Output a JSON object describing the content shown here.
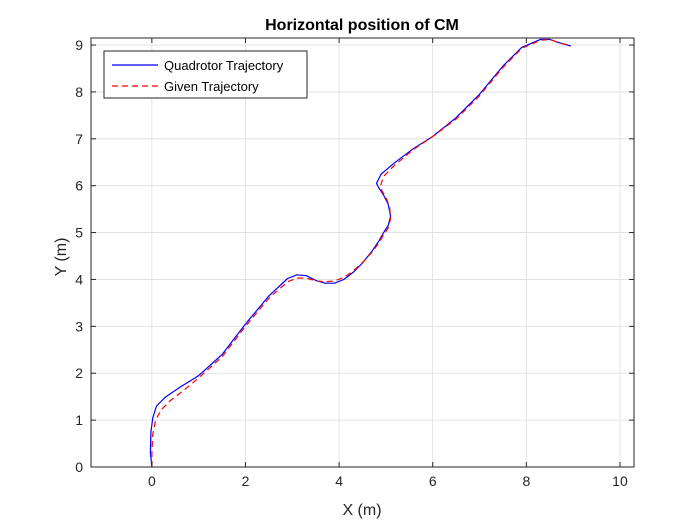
{
  "chart_data": {
    "type": "line",
    "title": "Horizontal position of CM",
    "xlabel": "X (m)",
    "ylabel": "Y (m)",
    "xlim": [
      -1.3,
      10.3
    ],
    "ylim": [
      0,
      9.15
    ],
    "xticks": [
      0,
      2,
      4,
      6,
      8,
      10
    ],
    "yticks": [
      0,
      1,
      2,
      3,
      4,
      5,
      6,
      7,
      8,
      9
    ],
    "grid": true,
    "legend_position": "top-left",
    "series": [
      {
        "name": "Quadrotor Trajectory",
        "color": "#0000ff",
        "line_style": "solid",
        "x": [
          0.0,
          -0.03,
          -0.02,
          0.02,
          0.1,
          0.3,
          0.6,
          1.0,
          1.5,
          2.0,
          2.5,
          2.9,
          3.1,
          3.3,
          3.5,
          3.7,
          3.9,
          4.1,
          4.3,
          4.5,
          4.7,
          4.85,
          4.95,
          5.05,
          5.1,
          5.05,
          4.95,
          4.85,
          4.8,
          4.9,
          5.2,
          5.6,
          6.0,
          6.5,
          7.0,
          7.5,
          7.9,
          8.3,
          8.5,
          8.7,
          8.95
        ],
        "y": [
          0.0,
          0.3,
          0.75,
          1.05,
          1.3,
          1.5,
          1.7,
          1.95,
          2.4,
          3.05,
          3.65,
          4.02,
          4.1,
          4.08,
          3.98,
          3.92,
          3.92,
          4.0,
          4.15,
          4.35,
          4.6,
          4.82,
          5.0,
          5.15,
          5.35,
          5.6,
          5.8,
          5.95,
          6.05,
          6.25,
          6.5,
          6.8,
          7.05,
          7.45,
          7.95,
          8.55,
          8.95,
          9.12,
          9.12,
          9.05,
          8.98
        ]
      },
      {
        "name": "Given Trajectory",
        "color": "#ff0000",
        "line_style": "dashed",
        "x": [
          0.0,
          0.0,
          0.02,
          0.08,
          0.2,
          0.4,
          0.7,
          1.0,
          1.5,
          2.0,
          2.5,
          2.9,
          3.1,
          3.3,
          3.5,
          3.7,
          3.9,
          4.1,
          4.3,
          4.5,
          4.7,
          4.85,
          4.95,
          5.05,
          5.1,
          5.08,
          5.0,
          4.92,
          4.88,
          4.95,
          5.2,
          5.6,
          6.0,
          6.5,
          7.0,
          7.5,
          7.9,
          8.3,
          8.5,
          8.7,
          8.95
        ],
        "y": [
          0.0,
          0.3,
          0.7,
          1.0,
          1.22,
          1.42,
          1.65,
          1.9,
          2.35,
          3.0,
          3.6,
          3.95,
          4.03,
          4.03,
          3.97,
          3.95,
          3.97,
          4.04,
          4.18,
          4.36,
          4.58,
          4.78,
          4.95,
          5.1,
          5.3,
          5.55,
          5.75,
          5.88,
          5.98,
          6.2,
          6.45,
          6.78,
          7.05,
          7.42,
          7.92,
          8.52,
          8.93,
          9.1,
          9.12,
          9.05,
          8.98
        ]
      }
    ]
  }
}
